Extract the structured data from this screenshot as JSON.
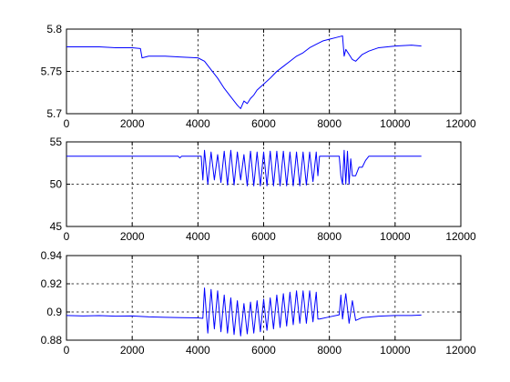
{
  "chart_data": [
    {
      "type": "line",
      "title": "",
      "xlabel": "",
      "ylabel": "",
      "xlim": [
        0,
        12000
      ],
      "ylim": [
        5.7,
        5.8
      ],
      "xticks": [
        0,
        2000,
        4000,
        6000,
        8000,
        10000,
        12000
      ],
      "xtick_labels": [
        "0",
        "2000",
        "4000",
        "6000",
        "8000",
        "10000",
        "12000"
      ],
      "yticks": [
        5.7,
        5.75,
        5.8
      ],
      "ytick_labels": [
        "5.7",
        "5.75",
        "5.8"
      ],
      "grid": true,
      "series": [
        {
          "color": "#0000ff",
          "x": [
            0,
            500,
            1000,
            1500,
            2000,
            2250,
            2300,
            2500,
            3000,
            3500,
            4000,
            4200,
            4400,
            4600,
            4800,
            5000,
            5200,
            5300,
            5400,
            5500,
            5600,
            5700,
            5800,
            6000,
            6200,
            6400,
            6600,
            6800,
            7000,
            7200,
            7400,
            7600,
            7800,
            8000,
            8200,
            8400,
            8450,
            8500,
            8600,
            8700,
            8800,
            9000,
            9200,
            9500,
            10000,
            10500,
            10800
          ],
          "y": [
            5.779,
            5.779,
            5.779,
            5.778,
            5.778,
            5.777,
            5.766,
            5.768,
            5.768,
            5.767,
            5.766,
            5.762,
            5.752,
            5.742,
            5.73,
            5.72,
            5.71,
            5.706,
            5.715,
            5.712,
            5.718,
            5.722,
            5.728,
            5.735,
            5.742,
            5.75,
            5.756,
            5.762,
            5.768,
            5.772,
            5.778,
            5.782,
            5.786,
            5.788,
            5.79,
            5.792,
            5.768,
            5.776,
            5.77,
            5.764,
            5.762,
            5.77,
            5.774,
            5.778,
            5.78,
            5.781,
            5.78
          ]
        }
      ]
    },
    {
      "type": "line",
      "title": "",
      "xlabel": "",
      "ylabel": "",
      "xlim": [
        0,
        12000
      ],
      "ylim": [
        45,
        55
      ],
      "xticks": [
        0,
        2000,
        4000,
        6000,
        8000,
        10000,
        12000
      ],
      "xtick_labels": [
        "0",
        "2000",
        "4000",
        "6000",
        "8000",
        "10000",
        "12000"
      ],
      "yticks": [
        45,
        50,
        55
      ],
      "ytick_labels": [
        "45",
        "50",
        "55"
      ],
      "grid": true,
      "series": [
        {
          "color": "#0000ff",
          "x": [
            0,
            3400,
            3450,
            3500,
            4100,
            4150,
            4200,
            4300,
            4400,
            4500,
            4600,
            4700,
            4800,
            4900,
            5000,
            5100,
            5200,
            5300,
            5400,
            5500,
            5600,
            5700,
            5800,
            5900,
            6000,
            6100,
            6200,
            6300,
            6400,
            6500,
            6600,
            6700,
            6800,
            6900,
            7000,
            7100,
            7200,
            7300,
            7400,
            7500,
            7600,
            7650,
            7700,
            8300,
            8350,
            8400,
            8450,
            8500,
            8550,
            8600,
            8650,
            8700,
            8800,
            8900,
            9000,
            9100,
            9200,
            9400,
            10800
          ],
          "y": [
            53.3,
            53.3,
            53.1,
            53.3,
            53.3,
            50.5,
            54.0,
            50.0,
            53.8,
            50.5,
            53.5,
            50.2,
            53.9,
            49.9,
            54.0,
            49.9,
            53.8,
            50.5,
            53.5,
            49.8,
            53.9,
            49.8,
            53.8,
            49.8,
            53.8,
            49.8,
            53.9,
            49.8,
            53.9,
            49.8,
            53.9,
            49.8,
            53.8,
            49.8,
            53.8,
            49.8,
            53.8,
            49.9,
            53.8,
            50.3,
            53.8,
            51.0,
            53.3,
            53.3,
            51.0,
            50.0,
            54.0,
            50.0,
            53.9,
            50.0,
            53.0,
            51.0,
            51.0,
            52.0,
            52.0,
            52.8,
            53.3,
            53.3,
            53.3
          ]
        }
      ]
    },
    {
      "type": "line",
      "title": "",
      "xlabel": "",
      "ylabel": "",
      "xlim": [
        0,
        12000
      ],
      "ylim": [
        0.88,
        0.94
      ],
      "xticks": [
        0,
        2000,
        4000,
        6000,
        8000,
        10000,
        12000
      ],
      "xtick_labels": [
        "0",
        "2000",
        "4000",
        "6000",
        "8000",
        "10000",
        "12000"
      ],
      "yticks": [
        0.88,
        0.9,
        0.92,
        0.94
      ],
      "ytick_labels": [
        "0.88",
        "0.9",
        "0.92",
        "0.94"
      ],
      "grid": true,
      "series": [
        {
          "color": "#0000ff",
          "x": [
            0,
            500,
            1000,
            1500,
            2000,
            2500,
            3000,
            3500,
            4000,
            4150,
            4200,
            4300,
            4400,
            4500,
            4600,
            4700,
            4800,
            4900,
            5000,
            5100,
            5200,
            5300,
            5400,
            5500,
            5600,
            5700,
            5800,
            5900,
            6000,
            6100,
            6200,
            6300,
            6400,
            6500,
            6600,
            6700,
            6800,
            6900,
            7000,
            7100,
            7200,
            7300,
            7400,
            7500,
            7600,
            7650,
            7700,
            8000,
            8300,
            8350,
            8400,
            8500,
            8600,
            8700,
            8800,
            9000,
            9500,
            10000,
            10500,
            10800
          ],
          "y": [
            0.8975,
            0.8972,
            0.8974,
            0.897,
            0.8972,
            0.8965,
            0.8962,
            0.896,
            0.8958,
            0.8955,
            0.917,
            0.885,
            0.916,
            0.888,
            0.915,
            0.886,
            0.912,
            0.885,
            0.91,
            0.884,
            0.908,
            0.883,
            0.906,
            0.8845,
            0.907,
            0.885,
            0.908,
            0.886,
            0.909,
            0.887,
            0.91,
            0.888,
            0.912,
            0.889,
            0.913,
            0.89,
            0.914,
            0.891,
            0.915,
            0.892,
            0.915,
            0.892,
            0.915,
            0.893,
            0.914,
            0.895,
            0.895,
            0.8965,
            0.898,
            0.912,
            0.895,
            0.913,
            0.892,
            0.908,
            0.894,
            0.896,
            0.897,
            0.8975,
            0.8975,
            0.8978
          ]
        }
      ]
    }
  ]
}
